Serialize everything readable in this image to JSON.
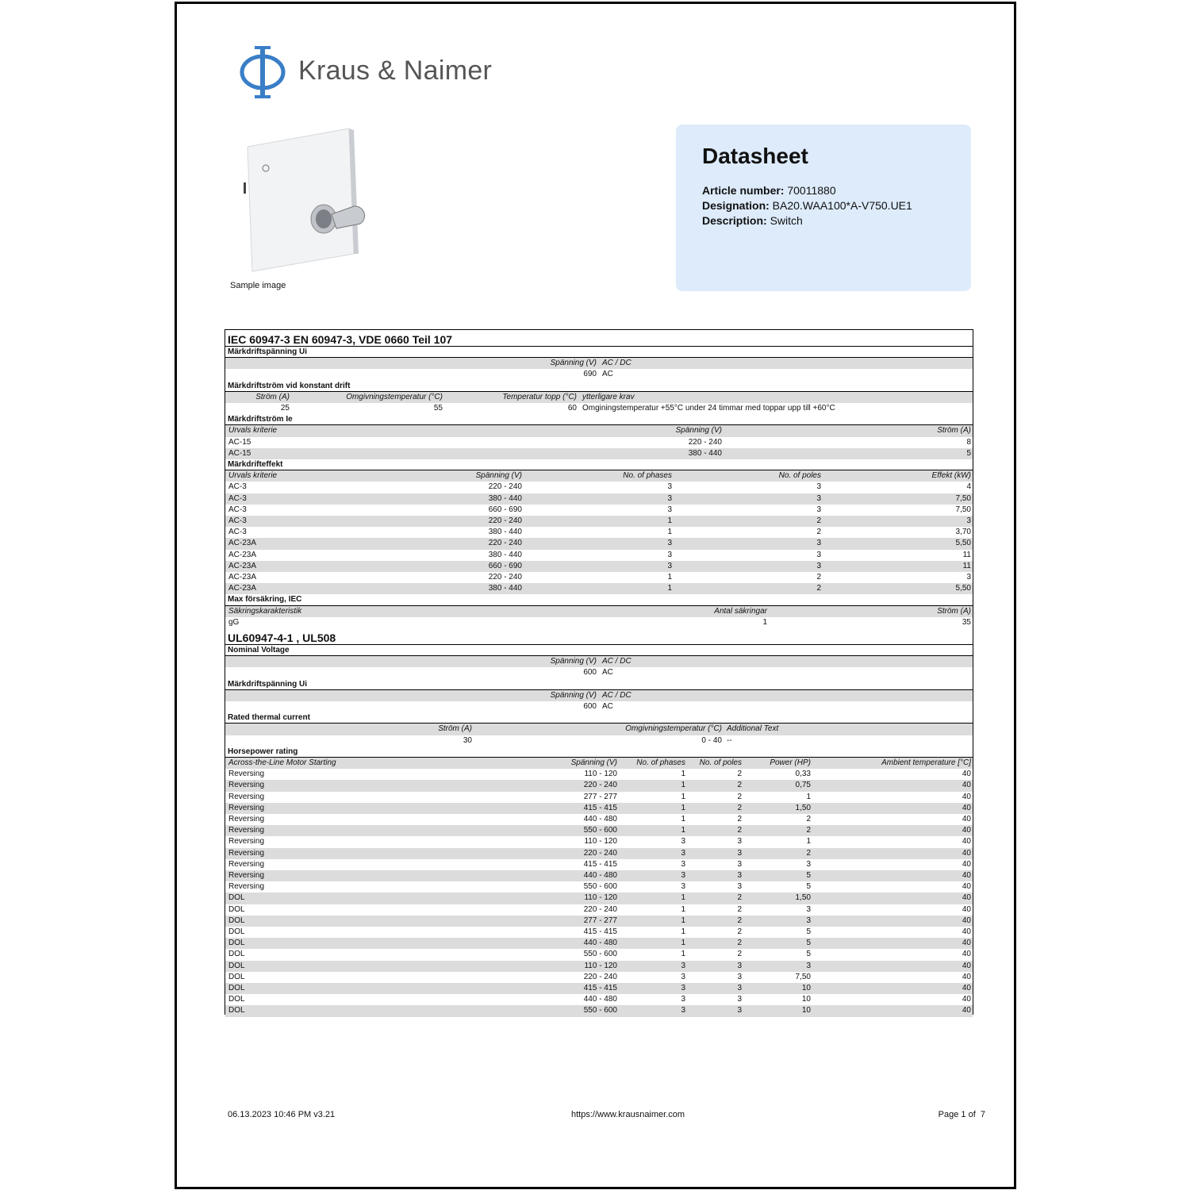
{
  "brand": {
    "name": "Kraus & Naimer",
    "accent": "#3a7ec7"
  },
  "image_caption": "Sample image",
  "info": {
    "title": "Datasheet",
    "article_label": "Article number:",
    "article": "70011880",
    "designation_label": "Designation:",
    "designation": "BA20.WAA100*A-V750.UE1",
    "description_label": "Description:",
    "description": "Switch"
  },
  "blocks": [
    {
      "heading": "IEC 60947-3 EN 60947-3, VDE 0660 Teil 107",
      "sections": [
        {
          "key": "ui",
          "title": "Märkdriftspänning Ui",
          "headers": [
            "Spänning (V)",
            "AC / DC"
          ],
          "rows": [
            [
              "690",
              "AC"
            ]
          ]
        },
        {
          "key": "drift",
          "title": "Märkdriftström vid konstant drift",
          "headers": [
            "Ström (A)",
            "Omgivningstemperatur (°C)",
            "Temperatur topp (°C)",
            "ytterligare krav"
          ],
          "rows": [
            [
              "25",
              "55",
              "60",
              "Omginingstemperatur +55°C under 24 timmar med toppar upp till +60°C"
            ]
          ]
        },
        {
          "key": "ie",
          "title": "Märkdriftström Ie",
          "headers": [
            "Urvals kriterie",
            "Spänning (V)",
            "Ström (A)"
          ],
          "rows": [
            [
              "AC-15",
              "220 - 240",
              "8"
            ],
            [
              "AC-15",
              "380 - 440",
              "5"
            ]
          ]
        },
        {
          "key": "eff",
          "title": "Märkdrifteffekt",
          "headers": [
            "Urvals kriterie",
            "Spänning (V)",
            "No. of phases",
            "No. of poles",
            "Effekt (kW)"
          ],
          "rows": [
            [
              "AC-3",
              "220 - 240",
              "3",
              "3",
              "4"
            ],
            [
              "AC-3",
              "380 - 440",
              "3",
              "3",
              "7,50"
            ],
            [
              "AC-3",
              "660 - 690",
              "3",
              "3",
              "7,50"
            ],
            [
              "AC-3",
              "220 - 240",
              "1",
              "2",
              "3"
            ],
            [
              "AC-3",
              "380 - 440",
              "1",
              "2",
              "3,70"
            ],
            [
              "AC-23A",
              "220 - 240",
              "3",
              "3",
              "5,50"
            ],
            [
              "AC-23A",
              "380 - 440",
              "3",
              "3",
              "11"
            ],
            [
              "AC-23A",
              "660 - 690",
              "3",
              "3",
              "11"
            ],
            [
              "AC-23A",
              "220 - 240",
              "1",
              "2",
              "3"
            ],
            [
              "AC-23A",
              "380 - 440",
              "1",
              "2",
              "5,50"
            ]
          ]
        },
        {
          "key": "fuse",
          "title": "Max försäkring, IEC",
          "headers": [
            "Säkringskarakteristik",
            "Antal säkringar",
            "Ström (A)"
          ],
          "rows": [
            [
              "gG",
              "1",
              "35"
            ]
          ]
        }
      ]
    },
    {
      "heading": "UL60947-4-1 , UL508",
      "sections": [
        {
          "key": "ui",
          "title": "Nominal Voltage",
          "headers": [
            "Spänning (V)",
            "AC / DC"
          ],
          "rows": [
            [
              "600",
              "AC"
            ]
          ]
        },
        {
          "key": "ui",
          "title": "Märkdriftspänning Ui",
          "headers": [
            "Spänning (V)",
            "AC / DC"
          ],
          "rows": [
            [
              "600",
              "AC"
            ]
          ]
        },
        {
          "key": "therm",
          "title": "Rated thermal current",
          "headers": [
            "Ström (A)",
            "Omgivningstemperatur (°C)",
            "Additional Text"
          ],
          "rows": [
            [
              "30",
              "0 - 40",
              "--"
            ]
          ]
        },
        {
          "key": "hp",
          "title": "Horsepower rating",
          "headers": [
            "Across-the-Line Motor Starting",
            "Spänning (V)",
            "No. of phases",
            "No. of poles",
            "Power (HP)",
            "Ambient temperature [°C]"
          ],
          "rows": [
            [
              "Reversing",
              "110 - 120",
              "1",
              "2",
              "0,33",
              "40"
            ],
            [
              "Reversing",
              "220 - 240",
              "1",
              "2",
              "0,75",
              "40"
            ],
            [
              "Reversing",
              "277 - 277",
              "1",
              "2",
              "1",
              "40"
            ],
            [
              "Reversing",
              "415 - 415",
              "1",
              "2",
              "1,50",
              "40"
            ],
            [
              "Reversing",
              "440 - 480",
              "1",
              "2",
              "2",
              "40"
            ],
            [
              "Reversing",
              "550 - 600",
              "1",
              "2",
              "2",
              "40"
            ],
            [
              "Reversing",
              "110 - 120",
              "3",
              "3",
              "1",
              "40"
            ],
            [
              "Reversing",
              "220 - 240",
              "3",
              "3",
              "2",
              "40"
            ],
            [
              "Reversing",
              "415 - 415",
              "3",
              "3",
              "3",
              "40"
            ],
            [
              "Reversing",
              "440 - 480",
              "3",
              "3",
              "5",
              "40"
            ],
            [
              "Reversing",
              "550 - 600",
              "3",
              "3",
              "5",
              "40"
            ],
            [
              "DOL",
              "110 - 120",
              "1",
              "2",
              "1,50",
              "40"
            ],
            [
              "DOL",
              "220 - 240",
              "1",
              "2",
              "3",
              "40"
            ],
            [
              "DOL",
              "277 - 277",
              "1",
              "2",
              "3",
              "40"
            ],
            [
              "DOL",
              "415 - 415",
              "1",
              "2",
              "5",
              "40"
            ],
            [
              "DOL",
              "440 - 480",
              "1",
              "2",
              "5",
              "40"
            ],
            [
              "DOL",
              "550 - 600",
              "1",
              "2",
              "5",
              "40"
            ],
            [
              "DOL",
              "110 - 120",
              "3",
              "3",
              "3",
              "40"
            ],
            [
              "DOL",
              "220 - 240",
              "3",
              "3",
              "7,50",
              "40"
            ],
            [
              "DOL",
              "415 - 415",
              "3",
              "3",
              "10",
              "40"
            ],
            [
              "DOL",
              "440 - 480",
              "3",
              "3",
              "10",
              "40"
            ],
            [
              "DOL",
              "550 - 600",
              "3",
              "3",
              "10",
              "40"
            ]
          ]
        }
      ]
    }
  ],
  "footer": {
    "left": "06.13.2023 10:46 PM v3.21",
    "center": "https://www.krausnaimer.com",
    "right": "Page 1 of  7"
  }
}
